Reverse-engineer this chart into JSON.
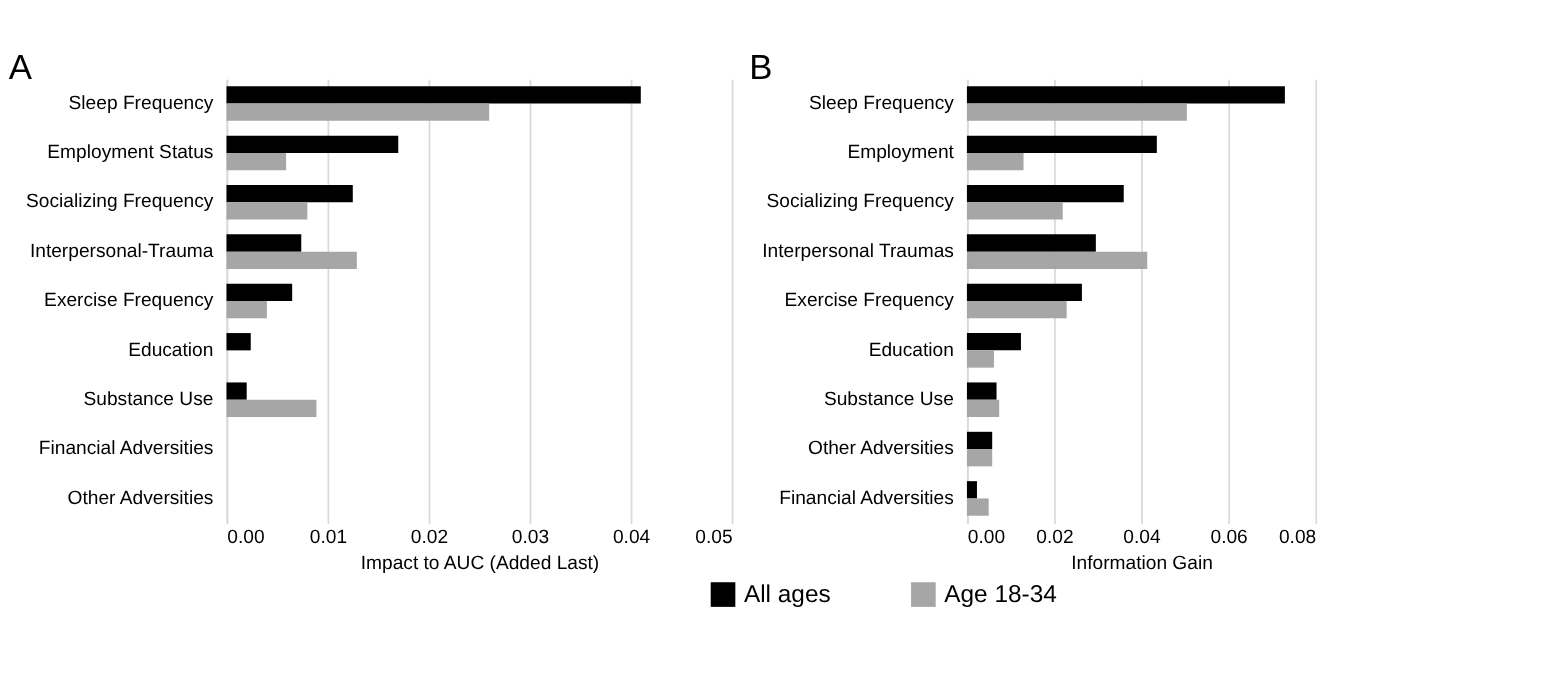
{
  "chart_data": [
    {
      "type": "bar",
      "orientation": "horizontal",
      "title": "A",
      "xlabel": "Impact to AUC (Added Last)",
      "categories": [
        "Sleep Frequency",
        "Employment Status",
        "Socializing Frequency",
        "Interpersonal-Trauma",
        "Exercise Frequency",
        "Education",
        "Substance Use",
        "Financial Adversities",
        "Other Adversities"
      ],
      "series": [
        {
          "name": "All ages",
          "color": "#000000",
          "values": [
            0.041,
            0.017,
            0.0125,
            0.0074,
            0.0065,
            0.0024,
            0.002,
            0,
            0
          ]
        },
        {
          "name": "Age 18-34",
          "color": "#a6a6a6",
          "values": [
            0.026,
            0.0059,
            0.008,
            0.0129,
            0.004,
            0,
            0.0089,
            0,
            0
          ]
        }
      ],
      "xlim": [
        0,
        0.05
      ],
      "xticks": [
        {
          "value": 0,
          "label": "0.00"
        },
        {
          "value": 0.01,
          "label": "0.01"
        },
        {
          "value": 0.02,
          "label": "0.02"
        },
        {
          "value": 0.03,
          "label": "0.03"
        },
        {
          "value": 0.04,
          "label": "0.04"
        },
        {
          "value": 0.05,
          "label": "0.05"
        }
      ],
      "grid": "x",
      "legend": "bottom"
    },
    {
      "type": "bar",
      "orientation": "horizontal",
      "title": "B",
      "xlabel": "Information Gain",
      "categories": [
        "Sleep Frequency",
        "Employment",
        "Socializing Frequency",
        "Interpersonal Traumas",
        "Exercise Frequency",
        "Education",
        "Substance Use",
        "Other Adversities",
        "Financial Adversities"
      ],
      "series": [
        {
          "name": "All ages",
          "color": "#000000",
          "values": [
            0.073,
            0.0436,
            0.036,
            0.0296,
            0.0264,
            0.0124,
            0.0068,
            0.0058,
            0.0023
          ]
        },
        {
          "name": "Age 18-34",
          "color": "#a6a6a6",
          "values": [
            0.0505,
            0.013,
            0.022,
            0.0414,
            0.0229,
            0.0062,
            0.0074,
            0.0058,
            0.005
          ]
        }
      ],
      "xlim": [
        0,
        0.08
      ],
      "xticks": [
        {
          "value": 0,
          "label": "0.00"
        },
        {
          "value": 0.02,
          "label": "0.02"
        },
        {
          "value": 0.04,
          "label": "0.04"
        },
        {
          "value": 0.06,
          "label": "0.06"
        },
        {
          "value": 0.08,
          "label": "0.08"
        }
      ],
      "grid": "x",
      "legend": "bottom"
    }
  ]
}
